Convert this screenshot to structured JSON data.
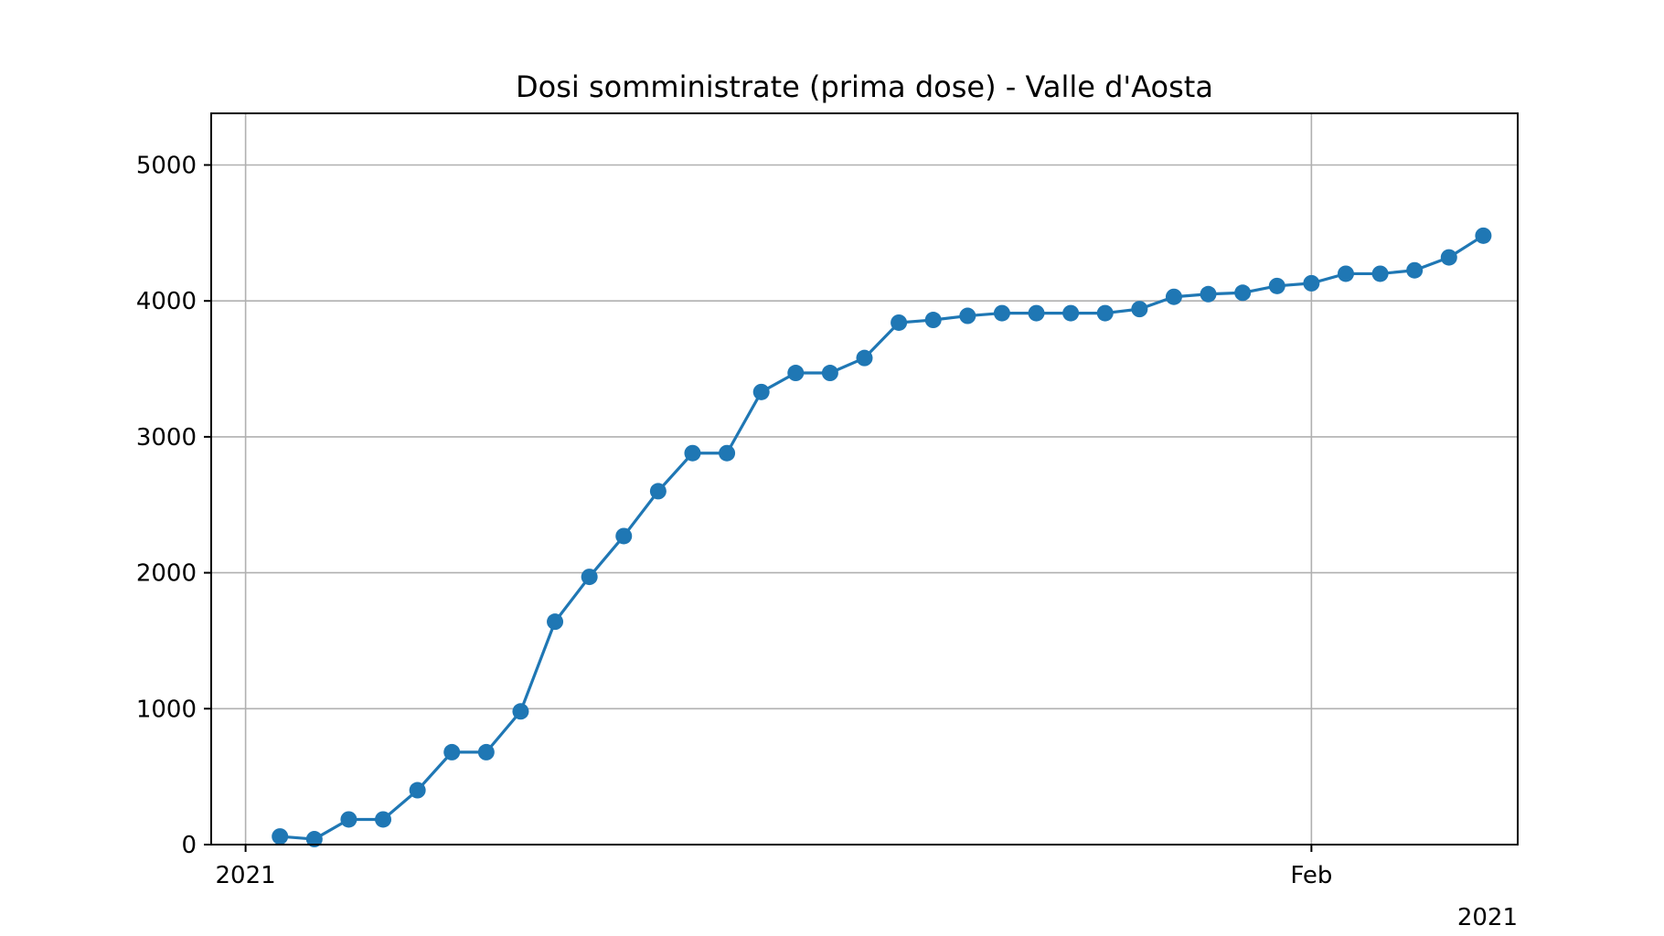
{
  "chart_data": {
    "type": "line",
    "title": "Dosi somministrate (prima dose) - Valle d'Aosta",
    "xlabel": "",
    "ylabel": "",
    "x_axis": {
      "kind": "date",
      "range": [
        "2020-12-31",
        "2021-02-07"
      ],
      "ticks": [
        {
          "date": "2021-01-01",
          "label": "2021"
        },
        {
          "date": "2021-02-01",
          "label": "Feb"
        }
      ],
      "offset_label": "2021"
    },
    "y_axis": {
      "range": [
        0,
        5380
      ],
      "ticks": [
        0,
        1000,
        2000,
        3000,
        4000,
        5000
      ]
    },
    "grid": true,
    "legend": "none",
    "series_color": "#1f77b4",
    "series": [
      {
        "x": [
          "2021-01-02",
          "2021-01-03",
          "2021-01-04",
          "2021-01-05",
          "2021-01-06",
          "2021-01-07",
          "2021-01-08",
          "2021-01-09",
          "2021-01-10",
          "2021-01-11",
          "2021-01-12",
          "2021-01-13",
          "2021-01-14",
          "2021-01-15",
          "2021-01-16",
          "2021-01-17",
          "2021-01-18",
          "2021-01-19",
          "2021-01-20",
          "2021-01-21",
          "2021-01-22",
          "2021-01-23",
          "2021-01-24",
          "2021-01-25",
          "2021-01-26",
          "2021-01-27",
          "2021-01-28",
          "2021-01-29",
          "2021-01-30",
          "2021-01-31",
          "2021-02-01",
          "2021-02-02",
          "2021-02-03",
          "2021-02-04",
          "2021-02-05",
          "2021-02-06"
        ],
        "values": [
          60,
          40,
          185,
          185,
          400,
          680,
          680,
          980,
          1640,
          1970,
          2270,
          2600,
          2880,
          2880,
          3330,
          3470,
          3470,
          3580,
          3840,
          3860,
          3890,
          3910,
          3910,
          3910,
          3910,
          3940,
          4030,
          4050,
          4060,
          4110,
          4130,
          4200,
          4200,
          4225,
          4320,
          4480
        ]
      }
    ]
  }
}
